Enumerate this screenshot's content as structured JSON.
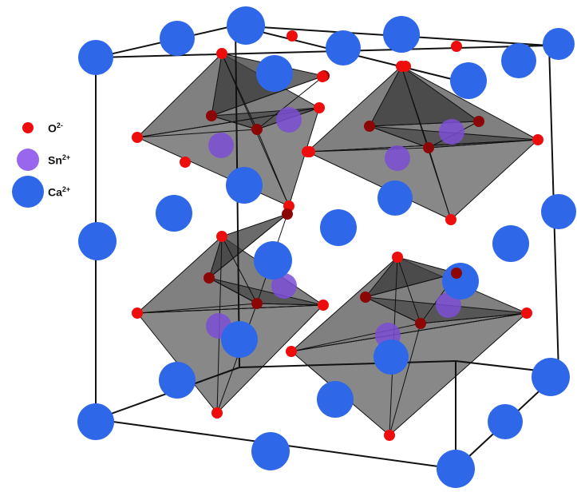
{
  "legend": [
    {
      "symbol": "O",
      "charge": "2-",
      "color": "#ee0d0d",
      "size": "small"
    },
    {
      "symbol": "Sn",
      "charge": "2+",
      "color": "#9966ee",
      "size": "medium"
    },
    {
      "symbol": "Ca",
      "charge": "2+",
      "color": "#2e67e8",
      "size": "large"
    }
  ],
  "colors": {
    "calcium": "#2e67e8",
    "calcium_dark": "#1e3f9a",
    "tin": "#7b4fd6",
    "oxygen": "#ee0d0d",
    "oxygen_dark": "#8c0606",
    "octahedron": "#6a6a6a",
    "octahedron_dark": "#3a3a3a",
    "edge": "#111111"
  }
}
